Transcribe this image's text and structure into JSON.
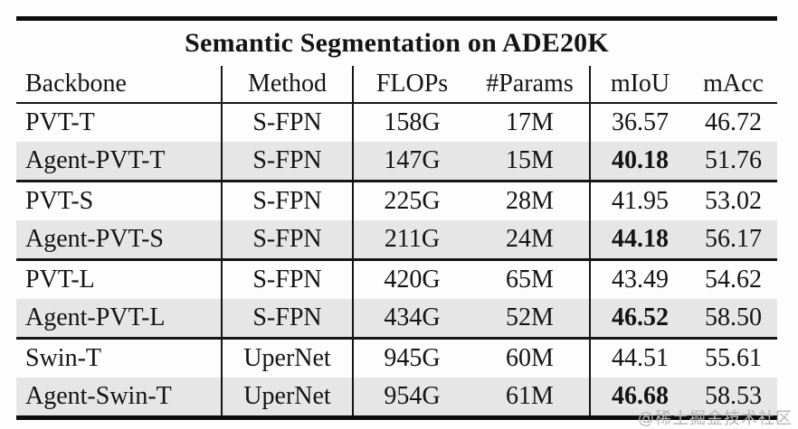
{
  "title": "Semantic Segmentation on ADE20K",
  "watermark": "@稀土掘金技术社区",
  "colors": {
    "highlight_row": "#e6e6e6",
    "rule": "#0d0d0d",
    "watermark": "#b5b5b5"
  },
  "table": {
    "columns": [
      "Backbone",
      "Method",
      "FLOPs",
      "#Params",
      "mIoU",
      "mAcc"
    ],
    "rows": [
      {
        "backbone": "PVT-T",
        "method": "S-FPN",
        "flops": "158G",
        "params": "17M",
        "miou": "36.57",
        "macc": "46.72",
        "highlighted": false,
        "miou_bold": false,
        "group_start": false
      },
      {
        "backbone": "Agent-PVT-T",
        "method": "S-FPN",
        "flops": "147G",
        "params": "15M",
        "miou": "40.18",
        "macc": "51.76",
        "highlighted": true,
        "miou_bold": true,
        "group_start": false
      },
      {
        "backbone": "PVT-S",
        "method": "S-FPN",
        "flops": "225G",
        "params": "28M",
        "miou": "41.95",
        "macc": "53.02",
        "highlighted": false,
        "miou_bold": false,
        "group_start": true
      },
      {
        "backbone": "Agent-PVT-S",
        "method": "S-FPN",
        "flops": "211G",
        "params": "24M",
        "miou": "44.18",
        "macc": "56.17",
        "highlighted": true,
        "miou_bold": true,
        "group_start": false
      },
      {
        "backbone": "PVT-L",
        "method": "S-FPN",
        "flops": "420G",
        "params": "65M",
        "miou": "43.49",
        "macc": "54.62",
        "highlighted": false,
        "miou_bold": false,
        "group_start": true
      },
      {
        "backbone": "Agent-PVT-L",
        "method": "S-FPN",
        "flops": "434G",
        "params": "52M",
        "miou": "46.52",
        "macc": "58.50",
        "highlighted": true,
        "miou_bold": true,
        "group_start": false
      },
      {
        "backbone": "Swin-T",
        "method": "UperNet",
        "flops": "945G",
        "params": "60M",
        "miou": "44.51",
        "macc": "55.61",
        "highlighted": false,
        "miou_bold": false,
        "group_start": true
      },
      {
        "backbone": "Agent-Swin-T",
        "method": "UperNet",
        "flops": "954G",
        "params": "61M",
        "miou": "46.68",
        "macc": "58.53",
        "highlighted": true,
        "miou_bold": true,
        "group_start": false
      }
    ]
  }
}
